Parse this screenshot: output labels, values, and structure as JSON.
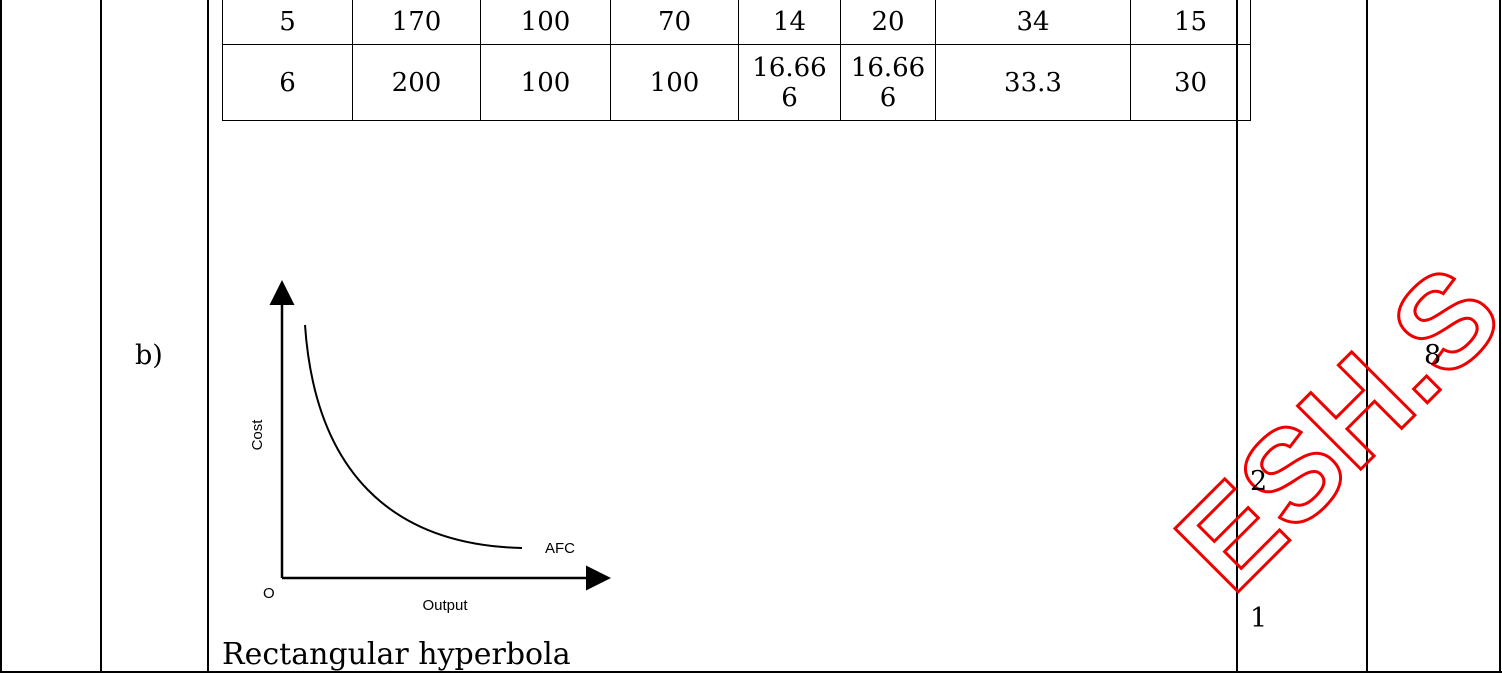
{
  "table": {
    "rows": [
      [
        "5",
        "170",
        "100",
        "70",
        "14",
        "20",
        "34",
        "15"
      ],
      [
        "6",
        "200",
        "100",
        "100",
        "16.666",
        "16.666",
        "33.3",
        "30"
      ]
    ]
  },
  "row_label": "b)",
  "total_marks": "8",
  "marks": [
    "2",
    "1"
  ],
  "figure": {
    "y_label": "Cost",
    "x_label": "Output",
    "curve_label": "AFC",
    "origin_label": "O"
  },
  "caption": "Rectangular hyperbola",
  "watermark": "ESH.S"
}
